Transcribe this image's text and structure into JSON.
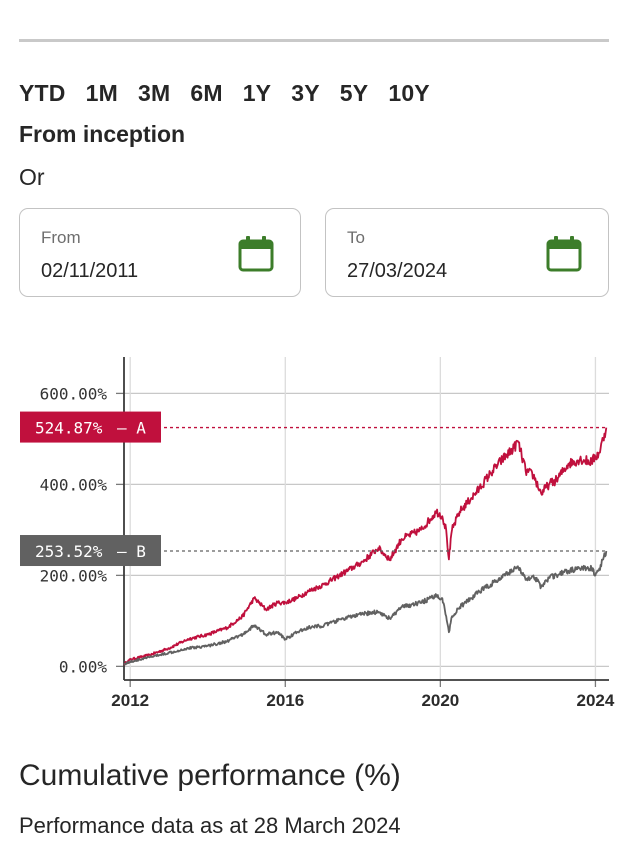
{
  "periods": [
    "YTD",
    "1M",
    "3M",
    "6M",
    "1Y",
    "3Y",
    "5Y",
    "10Y"
  ],
  "inception_label": "From inception",
  "or_label": "Or",
  "from": {
    "label": "From",
    "value": "02/11/2011"
  },
  "to": {
    "label": "To",
    "value": "27/03/2024"
  },
  "icons": {
    "calendar": "calendar-icon"
  },
  "colors": {
    "series_a": "#c0103d",
    "series_b": "#616161",
    "calendar": "#3c7d2a"
  },
  "chart_data": {
    "type": "line",
    "x_ticks": [
      "2012",
      "2016",
      "2020",
      "2024"
    ],
    "y_ticks": [
      "0.00%",
      "200.00%",
      "400.00%",
      "600.00%"
    ],
    "ylim": [
      -30,
      680
    ],
    "xlim": [
      2011.84,
      2024.35
    ],
    "grid": true,
    "series": [
      {
        "name": "A",
        "end_label": "524.87%",
        "color": "#c0103d",
        "x": [
          2011.84,
          2012.0,
          2012.5,
          2013.0,
          2013.5,
          2014.0,
          2014.5,
          2014.9,
          2015.2,
          2015.5,
          2015.8,
          2016.0,
          2016.3,
          2016.6,
          2017.0,
          2017.5,
          2018.0,
          2018.4,
          2018.7,
          2019.0,
          2019.5,
          2019.9,
          2020.05,
          2020.15,
          2020.22,
          2020.3,
          2020.5,
          2020.8,
          2021.0,
          2021.3,
          2021.6,
          2021.9,
          2022.0,
          2022.2,
          2022.4,
          2022.6,
          2022.8,
          2023.0,
          2023.3,
          2023.6,
          2023.9,
          2024.0,
          2024.1,
          2024.2,
          2024.28
        ],
        "y": [
          5,
          15,
          25,
          40,
          60,
          70,
          85,
          110,
          150,
          125,
          140,
          140,
          150,
          165,
          180,
          205,
          230,
          260,
          235,
          280,
          300,
          340,
          330,
          300,
          235,
          300,
          340,
          370,
          390,
          425,
          455,
          480,
          495,
          430,
          420,
          380,
          400,
          410,
          445,
          455,
          450,
          460,
          470,
          500,
          524.87
        ]
      },
      {
        "name": "B",
        "end_label": "253.52%",
        "color": "#616161",
        "x": [
          2011.84,
          2012.0,
          2012.5,
          2013.0,
          2013.5,
          2014.0,
          2014.5,
          2014.9,
          2015.2,
          2015.5,
          2015.8,
          2016.0,
          2016.3,
          2016.6,
          2017.0,
          2017.5,
          2018.0,
          2018.4,
          2018.7,
          2019.0,
          2019.5,
          2019.9,
          2020.05,
          2020.15,
          2020.22,
          2020.3,
          2020.5,
          2020.8,
          2021.0,
          2021.3,
          2021.6,
          2021.9,
          2022.0,
          2022.2,
          2022.4,
          2022.6,
          2022.8,
          2023.0,
          2023.3,
          2023.6,
          2023.9,
          2024.0,
          2024.1,
          2024.2,
          2024.28
        ],
        "y": [
          5,
          10,
          20,
          30,
          40,
          45,
          55,
          70,
          90,
          70,
          75,
          60,
          75,
          85,
          90,
          105,
          115,
          120,
          105,
          130,
          140,
          155,
          150,
          110,
          75,
          110,
          130,
          150,
          165,
          180,
          195,
          215,
          220,
          190,
          200,
          175,
          195,
          200,
          210,
          215,
          215,
          200,
          215,
          235,
          253.52
        ]
      }
    ]
  },
  "section": {
    "title": "Cumulative performance (%)",
    "subtitle": "Performance data as at 28 March 2024"
  }
}
